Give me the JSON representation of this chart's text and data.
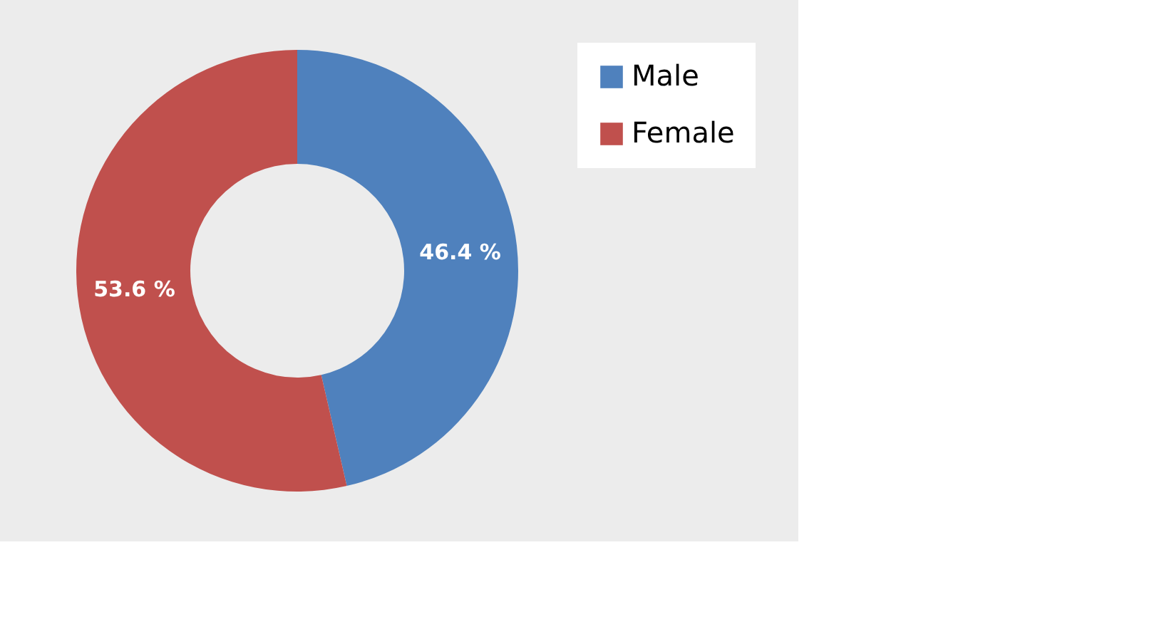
{
  "chart_data": {
    "type": "donut",
    "categories": [
      "Male",
      "Female"
    ],
    "values": [
      46.4,
      53.6
    ],
    "colors": [
      "#4f81bd",
      "#c0504d"
    ],
    "value_labels": [
      "46.4 %",
      "53.6 %"
    ],
    "legend": "right"
  }
}
